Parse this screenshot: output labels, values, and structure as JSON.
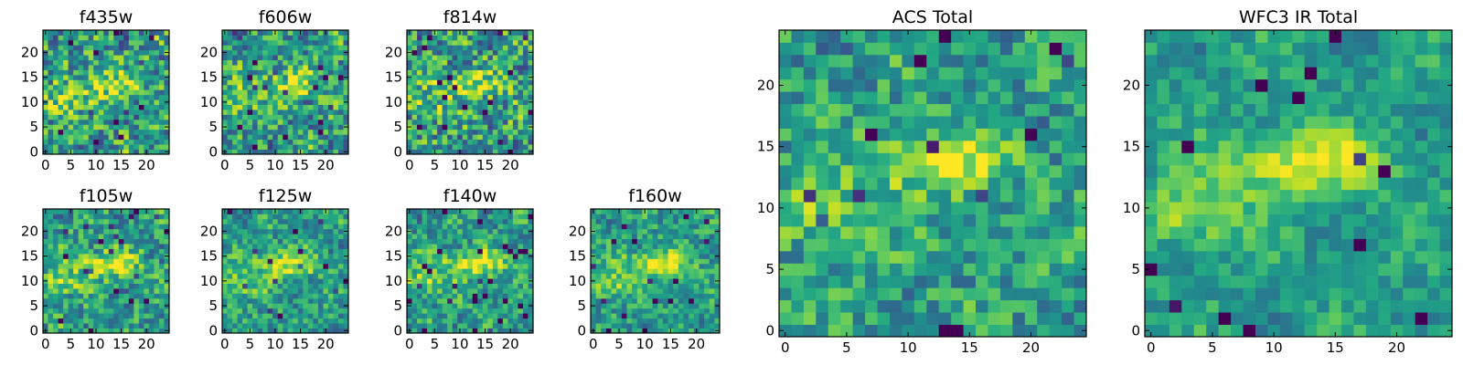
{
  "chart_data": [
    {
      "type": "heatmap",
      "title": "f435w",
      "xticks": [
        0,
        5,
        10,
        15,
        20
      ],
      "yticks": [
        0,
        5,
        10,
        15,
        20
      ],
      "xlim": [
        -0.5,
        24.5
      ],
      "ylim": [
        -0.5,
        24.5
      ],
      "grid": false,
      "colormap": "viridis",
      "grid_size": [
        25,
        25
      ],
      "noise_level": 0.32,
      "blob_strength": 0.8,
      "seed": 11
    },
    {
      "type": "heatmap",
      "title": "f606w",
      "xticks": [
        0,
        5,
        10,
        15,
        20
      ],
      "yticks": [
        0,
        5,
        10,
        15,
        20
      ],
      "xlim": [
        -0.5,
        24.5
      ],
      "ylim": [
        -0.5,
        24.5
      ],
      "grid": false,
      "colormap": "viridis",
      "grid_size": [
        25,
        25
      ],
      "noise_level": 0.3,
      "blob_strength": 0.85,
      "seed": 23
    },
    {
      "type": "heatmap",
      "title": "f814w",
      "xticks": [
        0,
        5,
        10,
        15,
        20
      ],
      "yticks": [
        0,
        5,
        10,
        15,
        20
      ],
      "xlim": [
        -0.5,
        24.5
      ],
      "ylim": [
        -0.5,
        24.5
      ],
      "grid": false,
      "colormap": "viridis",
      "grid_size": [
        25,
        25
      ],
      "noise_level": 0.32,
      "blob_strength": 0.8,
      "seed": 37
    },
    {
      "type": "heatmap",
      "title": "f105w",
      "xticks": [
        0,
        5,
        10,
        15,
        20
      ],
      "yticks": [
        0,
        5,
        10,
        15,
        20
      ],
      "xlim": [
        -0.5,
        24.5
      ],
      "ylim": [
        -0.5,
        24.5
      ],
      "grid": false,
      "colormap": "viridis",
      "grid_size": [
        25,
        25
      ],
      "noise_level": 0.24,
      "blob_strength": 0.9,
      "seed": 41
    },
    {
      "type": "heatmap",
      "title": "f125w",
      "xticks": [
        0,
        5,
        10,
        15,
        20
      ],
      "yticks": [
        0,
        5,
        10,
        15,
        20
      ],
      "xlim": [
        -0.5,
        24.5
      ],
      "ylim": [
        -0.5,
        24.5
      ],
      "grid": false,
      "colormap": "viridis",
      "grid_size": [
        25,
        25
      ],
      "noise_level": 0.22,
      "blob_strength": 0.9,
      "seed": 53
    },
    {
      "type": "heatmap",
      "title": "f140w",
      "xticks": [
        0,
        5,
        10,
        15,
        20
      ],
      "yticks": [
        0,
        5,
        10,
        15,
        20
      ],
      "xlim": [
        -0.5,
        24.5
      ],
      "ylim": [
        -0.5,
        24.5
      ],
      "grid": false,
      "colormap": "viridis",
      "grid_size": [
        25,
        25
      ],
      "noise_level": 0.22,
      "blob_strength": 0.95,
      "seed": 67
    },
    {
      "type": "heatmap",
      "title": "f160w",
      "xticks": [
        0,
        5,
        10,
        15,
        20
      ],
      "yticks": [
        0,
        5,
        10,
        15,
        20
      ],
      "xlim": [
        -0.5,
        24.5
      ],
      "ylim": [
        -0.5,
        24.5
      ],
      "grid": false,
      "colormap": "viridis",
      "grid_size": [
        25,
        25
      ],
      "noise_level": 0.2,
      "blob_strength": 1.0,
      "seed": 79
    },
    {
      "type": "heatmap",
      "title": "ACS Total",
      "xticks": [
        0,
        5,
        10,
        15,
        20
      ],
      "yticks": [
        0,
        5,
        10,
        15,
        20
      ],
      "xlim": [
        -0.5,
        24.5
      ],
      "ylim": [
        -0.5,
        24.5
      ],
      "grid": false,
      "colormap": "viridis",
      "grid_size": [
        25,
        25
      ],
      "noise_level": 0.22,
      "blob_strength": 0.75,
      "seed": 97
    },
    {
      "type": "heatmap",
      "title": "WFC3 IR Total",
      "xticks": [
        0,
        5,
        10,
        15,
        20
      ],
      "yticks": [
        0,
        5,
        10,
        15,
        20
      ],
      "xlim": [
        -0.5,
        24.5
      ],
      "ylim": [
        -0.5,
        24.5
      ],
      "grid": false,
      "colormap": "viridis",
      "grid_size": [
        25,
        25
      ],
      "noise_level": 0.14,
      "blob_strength": 1.0,
      "seed": 113
    }
  ]
}
